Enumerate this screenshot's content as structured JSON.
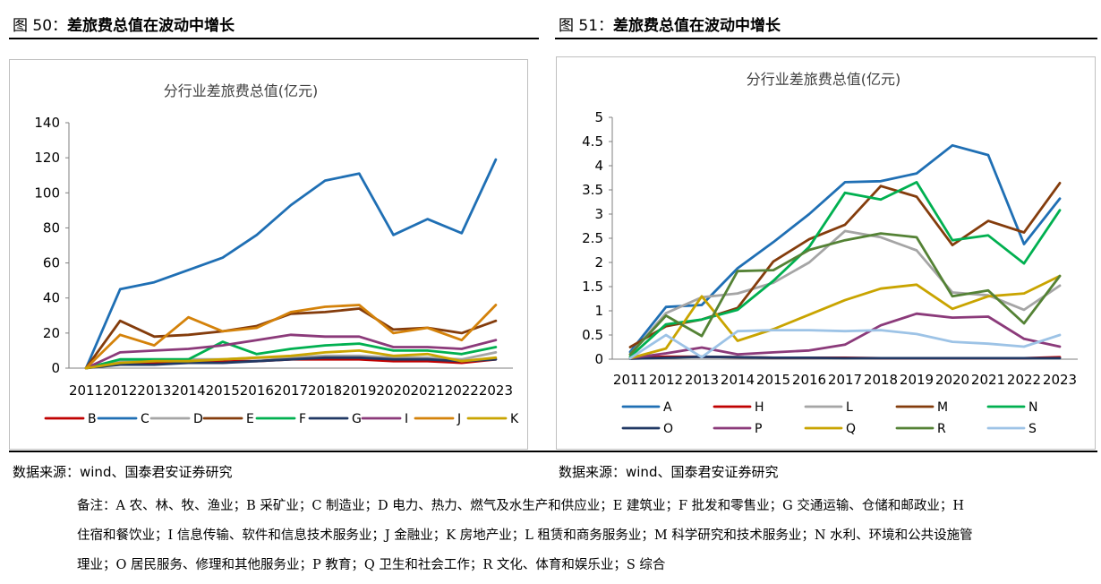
{
  "left_figure": {
    "number": "图 50：",
    "title": "差旅费总值在波动中增长",
    "source": "数据来源：wind、国泰君安证券研究"
  },
  "right_figure": {
    "number": "图 51：",
    "title": "差旅费总值在波动中增长",
    "source": "数据来源：wind、国泰君安证券研究"
  },
  "notes": {
    "line1": "备注：A 农、林、牧、渔业；B 采矿业；C 制造业；D 电力、热力、燃气及水生产和供应业；E 建筑业；F 批发和零售业；G 交通运输、仓储和邮政业；H",
    "line2": "住宿和餐饮业；I 信息传输、软件和信息技术服务业；J 金融业；K 房地产业；L 租赁和商务服务业；M 科学研究和技术服务业；N 水利、环境和公共设施管",
    "line3": "理业；O 居民服务、修理和其他服务业；P 教育；Q 卫生和社会工作；R 文化、体育和娱乐业；S 综合"
  },
  "chart_data": [
    {
      "type": "line",
      "title": "分行业差旅费总值(亿元)",
      "x": [
        "2011",
        "2012",
        "2013",
        "2014",
        "2015",
        "2016",
        "2017",
        "2018",
        "2019",
        "2020",
        "2021",
        "2022",
        "2023"
      ],
      "ylim": [
        0,
        140
      ],
      "yticks": [
        0,
        20,
        40,
        60,
        80,
        100,
        120,
        140
      ],
      "legend_position": "bottom",
      "series": [
        {
          "name": "B",
          "color": "#c00000",
          "values": [
            0,
            3,
            3,
            4,
            4,
            4,
            5,
            5,
            5,
            4,
            4,
            3,
            5
          ]
        },
        {
          "name": "C",
          "color": "#1f6fb4",
          "values": [
            0,
            45,
            49,
            56,
            63,
            76,
            93,
            107,
            111,
            76,
            85,
            77,
            119
          ]
        },
        {
          "name": "D",
          "color": "#a5a5a5",
          "values": [
            0,
            4,
            4,
            5,
            5,
            6,
            6,
            7,
            7,
            6,
            6,
            5,
            9
          ]
        },
        {
          "name": "E",
          "color": "#843c0c",
          "values": [
            0,
            27,
            18,
            19,
            21,
            24,
            31,
            32,
            34,
            22,
            23,
            20,
            27
          ]
        },
        {
          "name": "F",
          "color": "#00b050",
          "values": [
            0,
            5,
            5,
            5,
            15,
            8,
            11,
            13,
            14,
            10,
            10,
            8,
            12
          ]
        },
        {
          "name": "G",
          "color": "#203864",
          "values": [
            0,
            2,
            2,
            3,
            3,
            4,
            5,
            6,
            6,
            5,
            5,
            4,
            5
          ]
        },
        {
          "name": "I",
          "color": "#8b3a7a",
          "values": [
            0,
            9,
            10,
            11,
            13,
            16,
            19,
            18,
            18,
            12,
            12,
            11,
            16
          ]
        },
        {
          "name": "J",
          "color": "#d4820a",
          "values": [
            0,
            19,
            13,
            29,
            21,
            23,
            32,
            35,
            36,
            20,
            23,
            16,
            36
          ]
        },
        {
          "name": "K",
          "color": "#c9a400",
          "values": [
            0,
            3,
            4,
            4,
            5,
            6,
            7,
            9,
            10,
            7,
            8,
            4,
            6
          ]
        }
      ]
    },
    {
      "type": "line",
      "title": "分行业差旅费总值(亿元)",
      "x": [
        "2011",
        "2012",
        "2013",
        "2014",
        "2015",
        "2016",
        "2017",
        "2018",
        "2019",
        "2020",
        "2021",
        "2022",
        "2023"
      ],
      "ylim": [
        0,
        5
      ],
      "yticks": [
        "0",
        "0.5",
        "1",
        "1.5",
        "2",
        "2.5",
        "3",
        "3.5",
        "4",
        "4.5",
        "5"
      ],
      "legend_position": "bottom",
      "series": [
        {
          "name": "A",
          "color": "#1f6fb4",
          "values": [
            0.15,
            1.08,
            1.12,
            1.88,
            2.42,
            3.0,
            3.66,
            3.68,
            3.84,
            4.42,
            4.22,
            2.38,
            3.32
          ]
        },
        {
          "name": "H",
          "color": "#c00000",
          "values": [
            0.03,
            0.05,
            0.05,
            0.04,
            0.03,
            0.03,
            0.03,
            0.02,
            0.02,
            0.02,
            0.02,
            0.02,
            0.04
          ]
        },
        {
          "name": "L",
          "color": "#a5a5a5",
          "values": [
            0.1,
            0.95,
            1.28,
            1.36,
            1.58,
            2.0,
            2.65,
            2.52,
            2.25,
            1.38,
            1.32,
            1.02,
            1.52
          ]
        },
        {
          "name": "M",
          "color": "#843c0c",
          "values": [
            0.25,
            0.68,
            0.82,
            1.06,
            2.02,
            2.48,
            2.78,
            3.58,
            3.36,
            2.36,
            2.86,
            2.62,
            3.64
          ]
        },
        {
          "name": "N",
          "color": "#00b050",
          "values": [
            0.05,
            0.72,
            0.82,
            1.02,
            1.62,
            2.32,
            3.44,
            3.3,
            3.66,
            2.46,
            2.56,
            1.98,
            3.08
          ]
        },
        {
          "name": "O",
          "color": "#203864",
          "values": [
            0.01,
            0.03,
            0.05,
            0.04,
            0.03,
            0.03,
            0.02,
            0.02,
            0.02,
            0.02,
            0.02,
            0.02,
            0.02
          ]
        },
        {
          "name": "P",
          "color": "#8b3a7a",
          "values": [
            0.02,
            0.12,
            0.24,
            0.1,
            0.14,
            0.18,
            0.3,
            0.7,
            0.94,
            0.86,
            0.88,
            0.42,
            0.26
          ]
        },
        {
          "name": "Q",
          "color": "#c9a400",
          "values": [
            0.02,
            0.22,
            1.3,
            0.38,
            0.62,
            0.92,
            1.22,
            1.46,
            1.54,
            1.04,
            1.3,
            1.36,
            1.72
          ]
        },
        {
          "name": "R",
          "color": "#548235",
          "values": [
            0.1,
            0.9,
            0.48,
            1.82,
            1.84,
            2.26,
            2.46,
            2.6,
            2.52,
            1.3,
            1.42,
            0.74,
            1.72
          ]
        },
        {
          "name": "S",
          "color": "#9dc3e6",
          "values": [
            0.02,
            0.5,
            0.04,
            0.58,
            0.6,
            0.6,
            0.58,
            0.6,
            0.52,
            0.36,
            0.32,
            0.26,
            0.5
          ]
        }
      ]
    }
  ]
}
